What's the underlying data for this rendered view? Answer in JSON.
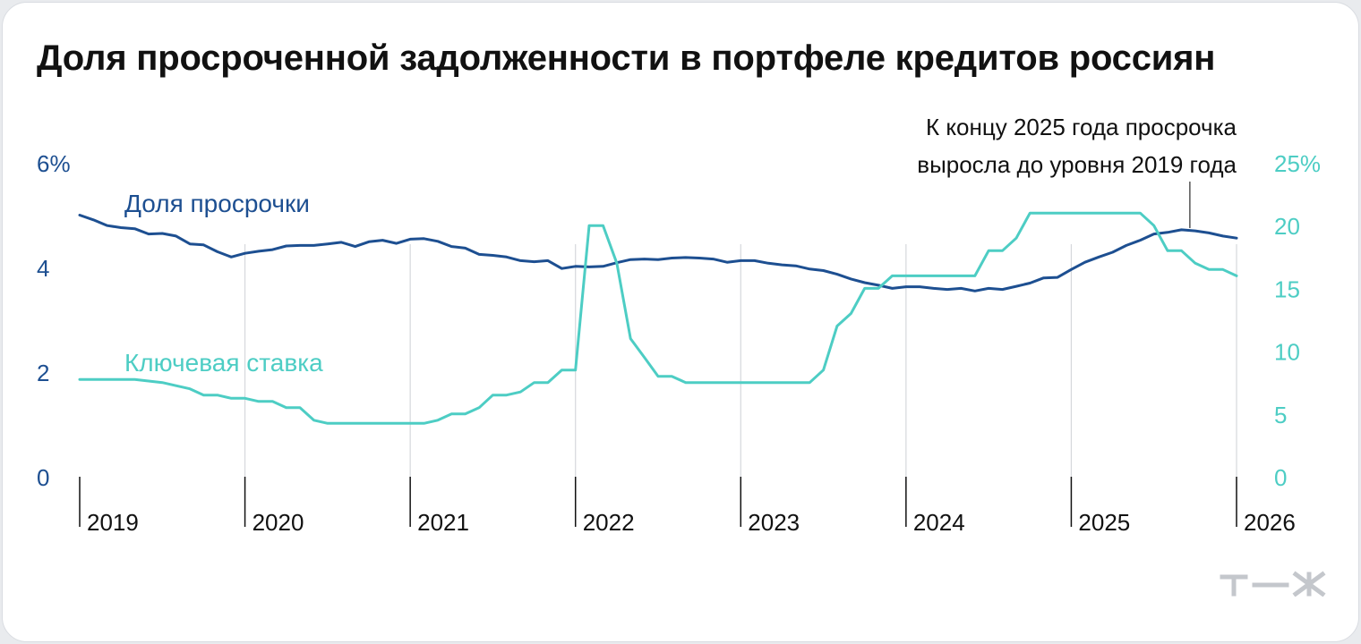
{
  "title": "Доля просроченной задолженности в портфеле кредитов россиян",
  "colors": {
    "overdue": "#1d4f91",
    "rate": "#4dcdc4",
    "grid": "#d6d8dc",
    "axis": "#111111"
  },
  "logo": {
    "text": "т—ж",
    "icon": "tzh-logo"
  },
  "chart_data": {
    "type": "line",
    "title": "Доля просроченной задолженности в портфеле кредитов россиян",
    "grid": true,
    "x_ticks": [
      "2019",
      "2020",
      "2021",
      "2022",
      "2023",
      "2024",
      "2025",
      "2026"
    ],
    "xlim": [
      2019.0,
      2026.0
    ],
    "y_left": {
      "ticks": [
        "0",
        "2",
        "4",
        "6%"
      ],
      "values": [
        0,
        2,
        4,
        6
      ],
      "ylim": [
        0,
        6
      ]
    },
    "y_right": {
      "ticks": [
        "0",
        "5",
        "10",
        "15",
        "20",
        "25%"
      ],
      "values": [
        0,
        5,
        10,
        15,
        20,
        25
      ],
      "ylim": [
        0,
        25
      ]
    },
    "annotation": {
      "lines": [
        "К концу 2025 года просрочка",
        "выросла до уровня 2019 года"
      ],
      "x": 2025.75,
      "y": 4.65
    },
    "series": [
      {
        "name": "Доля просрочки",
        "axis": "left",
        "x": [
          2019.0,
          2019.083,
          2019.167,
          2019.25,
          2019.333,
          2019.417,
          2019.5,
          2019.583,
          2019.667,
          2019.75,
          2019.833,
          2019.917,
          2020.0,
          2020.083,
          2020.167,
          2020.25,
          2020.333,
          2020.417,
          2020.5,
          2020.583,
          2020.667,
          2020.75,
          2020.833,
          2020.917,
          2021.0,
          2021.083,
          2021.167,
          2021.25,
          2021.333,
          2021.417,
          2021.5,
          2021.583,
          2021.667,
          2021.75,
          2021.833,
          2021.917,
          2022.0,
          2022.083,
          2022.167,
          2022.25,
          2022.333,
          2022.417,
          2022.5,
          2022.583,
          2022.667,
          2022.75,
          2022.833,
          2022.917,
          2023.0,
          2023.083,
          2023.167,
          2023.25,
          2023.333,
          2023.417,
          2023.5,
          2023.583,
          2023.667,
          2023.75,
          2023.833,
          2023.917,
          2024.0,
          2024.083,
          2024.167,
          2024.25,
          2024.333,
          2024.417,
          2024.5,
          2024.583,
          2024.667,
          2024.75,
          2024.833,
          2024.917,
          2025.0,
          2025.083,
          2025.167,
          2025.25,
          2025.333,
          2025.417,
          2025.5,
          2025.583,
          2025.667,
          2025.75,
          2025.833,
          2025.917,
          2026.0
        ],
        "values": [
          5.0,
          4.91,
          4.8,
          4.76,
          4.74,
          4.64,
          4.65,
          4.6,
          4.45,
          4.43,
          4.3,
          4.2,
          4.27,
          4.31,
          4.34,
          4.41,
          4.42,
          4.42,
          4.45,
          4.48,
          4.4,
          4.49,
          4.52,
          4.46,
          4.54,
          4.55,
          4.5,
          4.4,
          4.37,
          4.25,
          4.23,
          4.2,
          4.13,
          4.11,
          4.13,
          3.98,
          4.02,
          4.01,
          4.02,
          4.09,
          4.15,
          4.16,
          4.15,
          4.18,
          4.19,
          4.18,
          4.16,
          4.1,
          4.13,
          4.13,
          4.08,
          4.05,
          4.03,
          3.97,
          3.94,
          3.87,
          3.78,
          3.71,
          3.66,
          3.6,
          3.63,
          3.63,
          3.6,
          3.58,
          3.6,
          3.55,
          3.6,
          3.58,
          3.64,
          3.7,
          3.8,
          3.81,
          3.96,
          4.1,
          4.2,
          4.29,
          4.42,
          4.52,
          4.64,
          4.67,
          4.72,
          4.7,
          4.66,
          4.6,
          4.56
        ]
      },
      {
        "name": "Ключевая ставка",
        "axis": "right",
        "x": [
          2019.0,
          2019.333,
          2019.5,
          2019.583,
          2019.667,
          2019.75,
          2019.833,
          2019.917,
          2020.0,
          2020.083,
          2020.167,
          2020.25,
          2020.333,
          2020.417,
          2020.5,
          2020.583,
          2020.667,
          2020.75,
          2020.833,
          2020.917,
          2021.0,
          2021.083,
          2021.167,
          2021.25,
          2021.333,
          2021.417,
          2021.5,
          2021.583,
          2021.667,
          2021.75,
          2021.833,
          2021.917,
          2022.0,
          2022.083,
          2022.167,
          2022.25,
          2022.333,
          2022.417,
          2022.5,
          2022.583,
          2022.667,
          2022.75,
          2022.833,
          2022.917,
          2023.0,
          2023.083,
          2023.167,
          2023.25,
          2023.333,
          2023.417,
          2023.5,
          2023.583,
          2023.667,
          2023.75,
          2023.833,
          2023.917,
          2024.0,
          2024.083,
          2024.167,
          2024.25,
          2024.333,
          2024.417,
          2024.5,
          2024.583,
          2024.667,
          2024.75,
          2024.833,
          2024.917,
          2025.0,
          2025.083,
          2025.167,
          2025.25,
          2025.333,
          2025.417,
          2025.5,
          2025.583,
          2025.667,
          2025.75,
          2025.833,
          2025.917,
          2026.0
        ],
        "values": [
          7.75,
          7.75,
          7.5,
          7.25,
          7.0,
          6.5,
          6.5,
          6.25,
          6.25,
          6.0,
          6.0,
          5.5,
          5.5,
          4.5,
          4.25,
          4.25,
          4.25,
          4.25,
          4.25,
          4.25,
          4.25,
          4.25,
          4.5,
          5.0,
          5.0,
          5.5,
          6.5,
          6.5,
          6.75,
          7.5,
          7.5,
          8.5,
          8.5,
          20.0,
          20.0,
          17.0,
          11.0,
          9.5,
          8.0,
          8.0,
          7.5,
          7.5,
          7.5,
          7.5,
          7.5,
          7.5,
          7.5,
          7.5,
          7.5,
          7.5,
          8.5,
          12.0,
          13.0,
          15.0,
          15.0,
          16.0,
          16.0,
          16.0,
          16.0,
          16.0,
          16.0,
          16.0,
          18.0,
          18.0,
          19.0,
          21.0,
          21.0,
          21.0,
          21.0,
          21.0,
          21.0,
          21.0,
          21.0,
          21.0,
          20.0,
          18.0,
          18.0,
          17.0,
          16.5,
          16.5,
          16.0
        ]
      }
    ]
  }
}
